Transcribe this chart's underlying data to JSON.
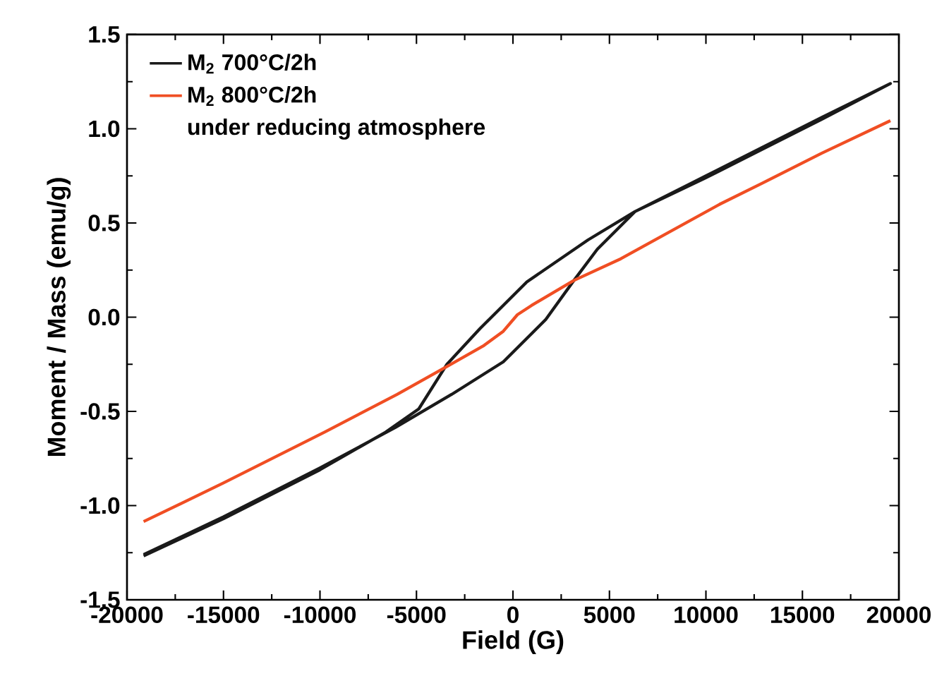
{
  "chart_data": {
    "type": "line",
    "xlabel": "Field (G)",
    "ylabel": "Moment / Mass (emu/g)",
    "xlim": [
      -20000,
      20000
    ],
    "ylim": [
      -1.5,
      1.5
    ],
    "xticks": [
      -20000,
      -15000,
      -10000,
      -5000,
      0,
      5000,
      10000,
      15000,
      20000
    ],
    "yticks": [
      -1.5,
      {
        "value": -1.0,
        "label": "-1.0"
      },
      -0.5,
      {
        "value": 0.0,
        "label": "0.0"
      },
      0.5,
      {
        "value": 1.0,
        "label": "1.0"
      },
      1.5
    ],
    "legend": "top left",
    "annotations": [
      "under reducing atmosphere"
    ],
    "series": [
      {
        "name": "M$_{2}$ 700°C/2h",
        "color": "#1a1a1a",
        "x": [
          -19140,
          -15000,
          -10000,
          -6590,
          -4880,
          -3420,
          -1720,
          720,
          3890,
          6320,
          10000,
          12900,
          16000,
          19560,
          16000,
          12900,
          10000,
          6320,
          4370,
          3160,
          1700,
          -500,
          -3180,
          -6100,
          -10000,
          -15000,
          -19140
        ],
        "values": [
          -1.267,
          -1.07,
          -0.81,
          -0.61,
          -0.487,
          -0.25,
          -0.062,
          0.187,
          0.41,
          0.56,
          0.75,
          0.9,
          1.06,
          1.24,
          1.05,
          0.89,
          0.74,
          0.56,
          0.36,
          0.195,
          -0.012,
          -0.237,
          -0.41,
          -0.586,
          -0.8,
          -1.06,
          -1.26
        ]
      },
      {
        "name": "M$_{2}$ 800°C/2h",
        "color": "#f04e23",
        "x": [
          -19140,
          -15000,
          -9760,
          -6000,
          -3420,
          -1500,
          -500,
          230,
          960,
          3160,
          5590,
          10710,
          12900,
          16000,
          19560
        ],
        "values": [
          -1.085,
          -0.88,
          -0.61,
          -0.41,
          -0.262,
          -0.15,
          -0.075,
          0.013,
          0.062,
          0.195,
          0.31,
          0.599,
          0.71,
          0.87,
          1.043
        ]
      }
    ]
  }
}
